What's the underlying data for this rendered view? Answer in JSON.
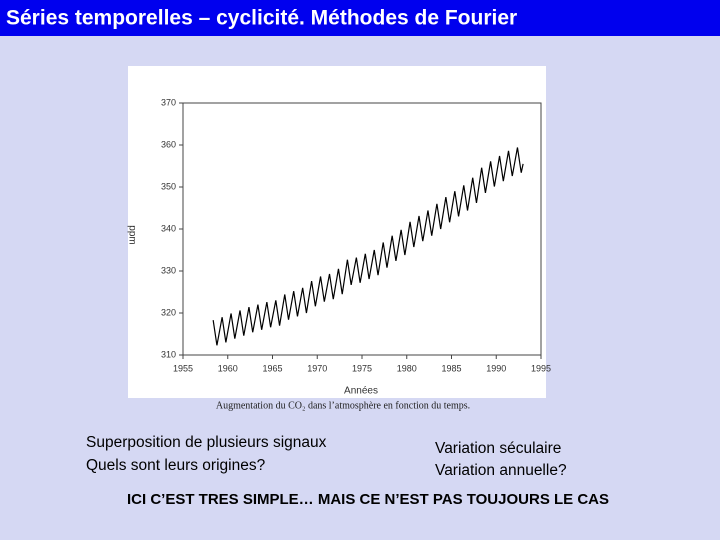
{
  "header": {
    "title": "Séries temporelles – cyclicité. Méthodes de Fourier"
  },
  "chart_data": {
    "type": "line",
    "xlabel": "Années",
    "ylabel": "ppm",
    "xlim": [
      1955,
      1995
    ],
    "ylim": [
      310,
      370
    ],
    "xticks": [
      1955,
      1960,
      1965,
      1970,
      1975,
      1980,
      1985,
      1990,
      1995
    ],
    "yticks": [
      310,
      320,
      330,
      340,
      350,
      360,
      370
    ],
    "series": [
      {
        "color": "#000000",
        "x": [
          1958.37,
          1958.79,
          1959.37,
          1959.79,
          1960.37,
          1960.79,
          1961.37,
          1961.79,
          1962.37,
          1962.79,
          1963.37,
          1963.79,
          1964.37,
          1964.79,
          1965.37,
          1965.79,
          1966.37,
          1966.79,
          1967.37,
          1967.79,
          1968.37,
          1968.79,
          1969.37,
          1969.79,
          1970.37,
          1970.79,
          1971.37,
          1971.79,
          1972.37,
          1972.79,
          1973.37,
          1973.79,
          1974.37,
          1974.79,
          1975.37,
          1975.79,
          1976.37,
          1976.79,
          1977.37,
          1977.79,
          1978.37,
          1978.79,
          1979.37,
          1979.79,
          1980.37,
          1980.79,
          1981.37,
          1981.79,
          1982.37,
          1982.79,
          1983.37,
          1983.79,
          1984.37,
          1984.79,
          1985.37,
          1985.79,
          1986.37,
          1986.79,
          1987.37,
          1987.79,
          1988.37,
          1988.79,
          1989.37,
          1989.79,
          1990.37,
          1990.79,
          1991.37,
          1991.79,
          1992.37,
          1992.79,
          1993.0
        ],
        "values": [
          318.3,
          312.3,
          319.0,
          313.0,
          319.9,
          313.9,
          320.6,
          314.6,
          321.4,
          315.4,
          322.0,
          316.0,
          322.6,
          316.6,
          323.0,
          317.0,
          324.4,
          318.4,
          325.2,
          319.2,
          326.0,
          320.0,
          327.6,
          321.6,
          328.7,
          322.7,
          329.3,
          323.3,
          330.5,
          324.5,
          332.7,
          326.7,
          333.2,
          327.2,
          334.1,
          328.1,
          335.0,
          329.0,
          336.8,
          330.8,
          338.4,
          332.4,
          339.8,
          333.8,
          341.7,
          335.7,
          343.1,
          337.1,
          344.4,
          338.4,
          346.0,
          340.0,
          347.6,
          341.6,
          349.0,
          343.0,
          350.4,
          344.4,
          352.2,
          346.2,
          354.6,
          348.6,
          356.1,
          350.1,
          357.4,
          351.4,
          358.6,
          352.6,
          359.4,
          353.4,
          355.5
        ]
      }
    ]
  },
  "caption": "Augmentation du CO₂ dans l’atmosphère en fonction du temps.",
  "body": {
    "left": [
      "Superposition de plusieurs signaux",
      "Quels sont leurs origines?"
    ],
    "right": [
      "Variation séculaire",
      "Variation annuelle?"
    ],
    "conclusion": "ICI C’EST TRES SIMPLE… MAIS CE N’EST PAS TOUJOURS LE CAS"
  }
}
